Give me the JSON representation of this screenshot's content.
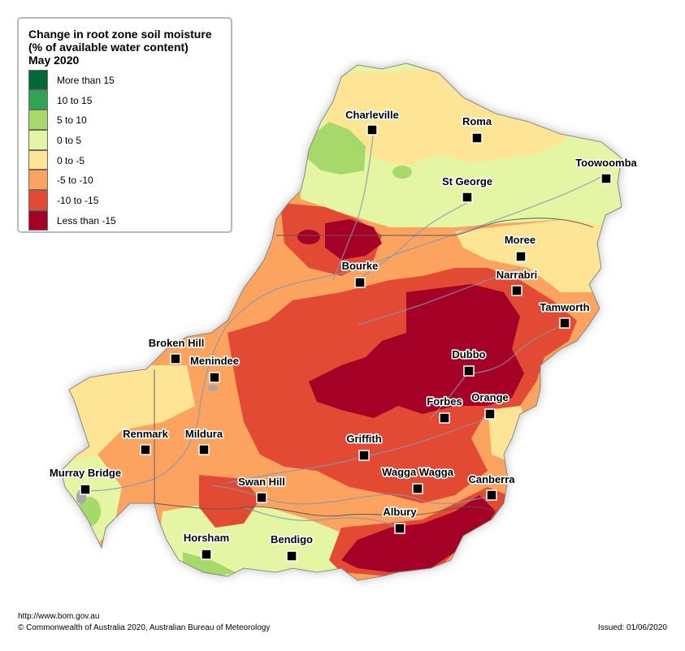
{
  "legend": {
    "title_lines": [
      "Change in root zone soil moisture",
      "(% of available water content)",
      "May 2020"
    ],
    "classes": [
      {
        "label": "More than 15",
        "color": "#006837"
      },
      {
        "label": "10 to 15",
        "color": "#31a354"
      },
      {
        "label": "5 to 10",
        "color": "#a6d96a"
      },
      {
        "label": "0 to 5",
        "color": "#e4f5a4"
      },
      {
        "label": "0 to -5",
        "color": "#fee595"
      },
      {
        "label": "-5 to -10",
        "color": "#fca35f"
      },
      {
        "label": "-10 to -15",
        "color": "#e34a33"
      },
      {
        "label": "Less than -15",
        "color": "#a50026"
      }
    ]
  },
  "towns": [
    {
      "name": "Charleville"
    },
    {
      "name": "Roma"
    },
    {
      "name": "Toowoomba"
    },
    {
      "name": "St George"
    },
    {
      "name": "Moree"
    },
    {
      "name": "Bourke"
    },
    {
      "name": "Narrabri"
    },
    {
      "name": "Tamworth"
    },
    {
      "name": "Broken Hill"
    },
    {
      "name": "Menindee"
    },
    {
      "name": "Dubbo"
    },
    {
      "name": "Forbes"
    },
    {
      "name": "Orange"
    },
    {
      "name": "Renmark"
    },
    {
      "name": "Mildura"
    },
    {
      "name": "Griffith"
    },
    {
      "name": "Murray Bridge"
    },
    {
      "name": "Wagga Wagga"
    },
    {
      "name": "Canberra"
    },
    {
      "name": "Swan Hill"
    },
    {
      "name": "Albury"
    },
    {
      "name": "Horsham"
    },
    {
      "name": "Bendigo"
    }
  ],
  "footer": {
    "url": "http://www.bom.gov.au",
    "copyright": "© Commonwealth of Australia 2020, Australian Bureau of Meteorology",
    "issued": "Issued: 01/06/2020"
  }
}
